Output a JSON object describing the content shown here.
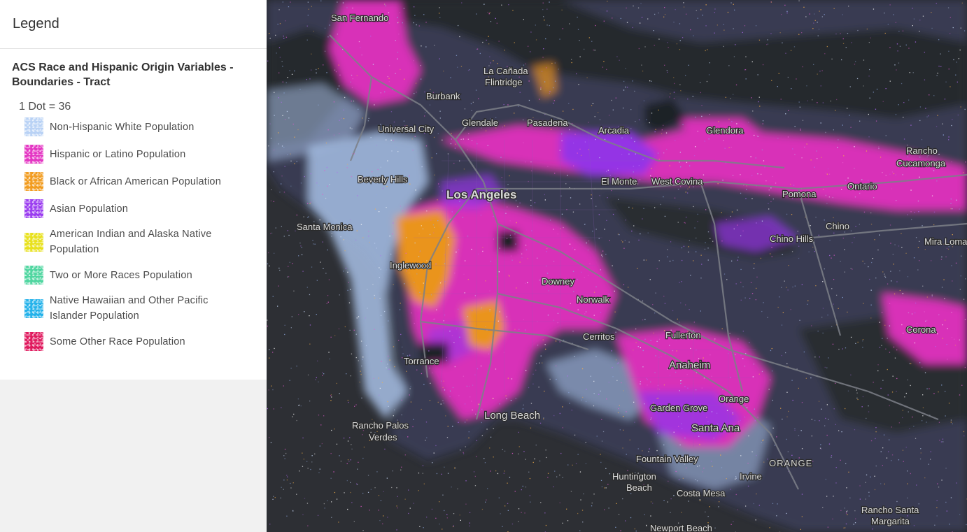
{
  "legend": {
    "title": "Legend",
    "layer_title": "ACS Race and Hispanic Origin Variables - Boundaries - Tract",
    "dot_value": "1 Dot = 36",
    "items": [
      {
        "label": "Non-Hispanic White Population",
        "color": "#b9d2f5",
        "icon": "light-blue-dot-swatch"
      },
      {
        "label": "Hispanic or Latino Population",
        "color": "#e436c3",
        "icon": "magenta-dot-swatch"
      },
      {
        "label": "Black or African American Population",
        "color": "#f29c1f",
        "icon": "orange-dot-swatch"
      },
      {
        "label": "Asian Population",
        "color": "#9b3ef0",
        "icon": "purple-dot-swatch"
      },
      {
        "label": "American Indian and Alaska Native Population",
        "color": "#e8e11c",
        "icon": "yellow-dot-swatch"
      },
      {
        "label": "Two or More Races Population",
        "color": "#4fd6a0",
        "icon": "green-dot-swatch"
      },
      {
        "label": "Native Hawaiian and Other Pacific Islander Population",
        "color": "#24b2ea",
        "icon": "cyan-dot-swatch"
      },
      {
        "label": "Some Other Race Population",
        "color": "#e01a5e",
        "icon": "crimson-dot-swatch"
      }
    ]
  },
  "map": {
    "background": "#24272b",
    "water": "#2e3035",
    "places": {
      "san_fernando": "San Fernando",
      "la_canada_1": "La Cañada",
      "la_canada_2": "Flintridge",
      "burbank": "Burbank",
      "glendale": "Glendale",
      "pasadena": "Pasadena",
      "universal_city": "Universal City",
      "arcadia": "Arcadia",
      "glendora": "Glendora",
      "rancho_cucamonga_1": "Rancho",
      "rancho_cucamonga_2": "Cucamonga",
      "beverly_hills": "Beverly Hills",
      "los_angeles": "Los Angeles",
      "el_monte": "El Monte",
      "west_covina": "West Covina",
      "pomona": "Pomona",
      "ontario": "Ontario",
      "santa_monica": "Santa Monica",
      "chino": "Chino",
      "chino_hills": "Chino Hills",
      "mira_loma": "Mira Loma",
      "inglewood": "Inglewood",
      "downey": "Downey",
      "norwalk": "Norwalk",
      "corona": "Corona",
      "cerritos": "Cerritos",
      "fullerton": "Fullerton",
      "torrance": "Torrance",
      "anaheim": "Anaheim",
      "garden_grove": "Garden Grove",
      "orange": "Orange",
      "long_beach": "Long Beach",
      "rancho_palos_verdes_1": "Rancho Palos",
      "rancho_palos_verdes_2": "Verdes",
      "santa_ana": "Santa Ana",
      "fountain_valley": "Fountain Valley",
      "huntington_beach_1": "Huntington",
      "huntington_beach_2": "Beach",
      "irvine": "Irvine",
      "orange_county": "ORANGE",
      "costa_mesa": "Costa Mesa",
      "newport_beach": "Newport Beach",
      "rancho_santa_margarita_1": "Rancho Santa",
      "rancho_santa_margarita_2": "Margarita"
    }
  }
}
